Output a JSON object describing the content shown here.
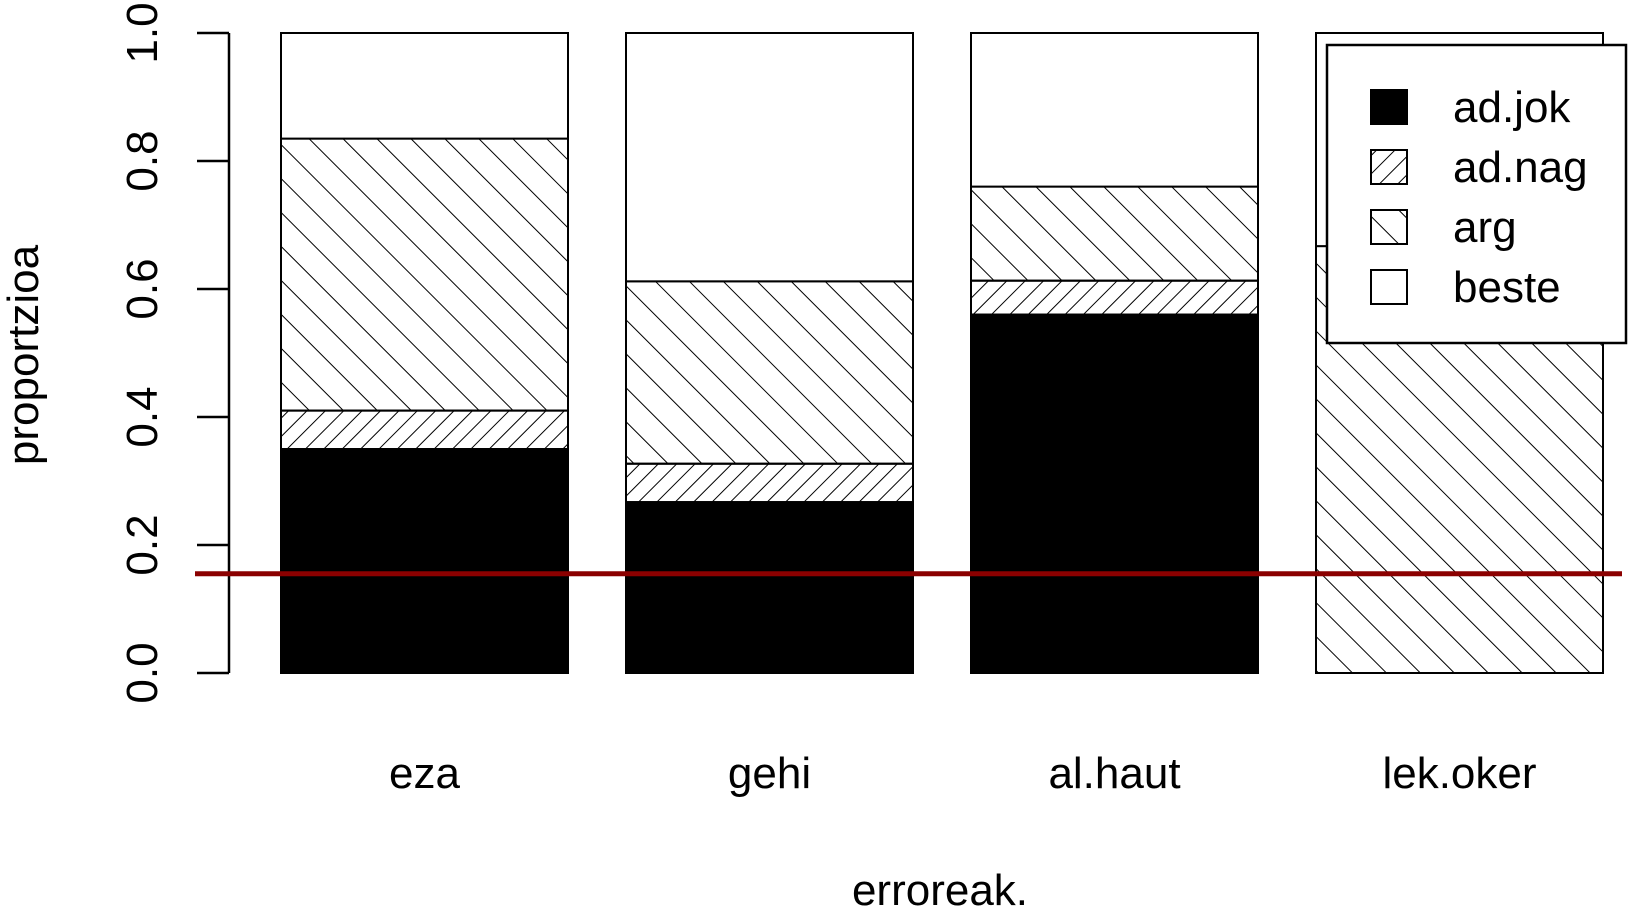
{
  "chart_data": {
    "type": "bar",
    "stacked": true,
    "categories": [
      "eza",
      "gehi",
      "al.haut",
      "lek.oker"
    ],
    "series": [
      {
        "name": "ad.jok",
        "pattern": "solid-black",
        "values": [
          0.35,
          0.267,
          0.56,
          0.0
        ]
      },
      {
        "name": "ad.nag",
        "pattern": "dense-hatch-45",
        "values": [
          0.06,
          0.06,
          0.053,
          0.0
        ]
      },
      {
        "name": "arg",
        "pattern": "sparse-hatch-135",
        "values": [
          0.425,
          0.285,
          0.147,
          0.667
        ]
      },
      {
        "name": "beste",
        "pattern": "white",
        "values": [
          0.165,
          0.388,
          0.24,
          0.333
        ]
      }
    ],
    "xlabel": "erroreak.",
    "ylabel": "proportzioa",
    "ylim": [
      0,
      1
    ],
    "yticks": [
      "0.0",
      "0.2",
      "0.4",
      "0.6",
      "0.8",
      "1.0"
    ],
    "reference_line": {
      "y": 0.155,
      "color": "#8b0000"
    },
    "legend": {
      "placement": "top-right",
      "entries": [
        "ad.jok",
        "ad.nag",
        "arg",
        "beste"
      ]
    },
    "grid": false
  }
}
